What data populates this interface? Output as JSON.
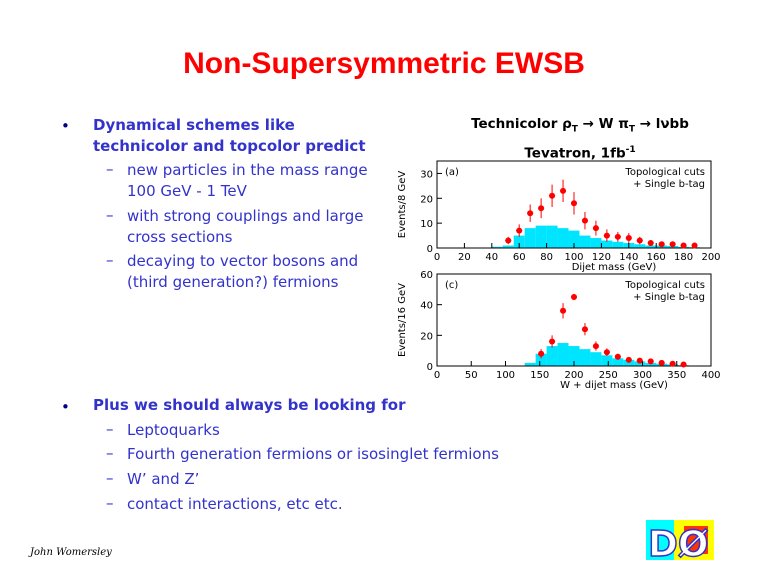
{
  "slide": {
    "title": "Non-Supersymmetric EWSB",
    "footer": "John Womersley"
  },
  "bullets": {
    "first": {
      "text_line1": "Dynamical schemes like",
      "text_line2": "technicolor and topcolor predict",
      "subitems": [
        {
          "line1": "new particles in the mass range",
          "line2": "100 GeV - 1 TeV"
        },
        {
          "line1": "with strong couplings and large",
          "line2": "cross sections"
        },
        {
          "line1": "decaying to vector bosons and",
          "line2": "(third generation?) fermions"
        }
      ]
    },
    "second": {
      "text": "Plus we should always be looking for",
      "subitems": [
        "Leptoquarks",
        "Fourth generation fermions or isosinglet fermions",
        "W’ and Z’",
        "contact interactions, etc etc."
      ]
    }
  },
  "figure": {
    "title_prefix": "Technicolor ",
    "title_rho": "ρ",
    "title_rho_sub": "T",
    "title_arrow1": " → W ",
    "title_pi": "π",
    "title_pi_sub": "T",
    "title_arrow2": " → lνbb",
    "subtitle": "Tevatron, 1fb",
    "subtitle_sup": "-1"
  },
  "logo": {
    "text": "DØ"
  },
  "colors": {
    "title": "#ff0000",
    "text": "#3333cc",
    "bg_hist": "#00e5ff",
    "points": "#ff0000"
  },
  "chart_data": [
    {
      "type": "bar",
      "panel_label": "(a)",
      "annotation_line1": "Topological cuts",
      "annotation_line2": "+ Single b-tag",
      "xlabel": "Dijet mass (GeV)",
      "ylabel": "Events/8 GeV",
      "xlim": [
        0,
        200
      ],
      "ylim": [
        0,
        35
      ],
      "xticks": [
        0,
        20,
        40,
        60,
        80,
        100,
        120,
        140,
        160,
        180,
        200
      ],
      "yticks": [
        0,
        10,
        20,
        30
      ],
      "bin_width": 8,
      "background": [
        {
          "x": 40,
          "y": 0.5
        },
        {
          "x": 48,
          "y": 1
        },
        {
          "x": 56,
          "y": 5
        },
        {
          "x": 64,
          "y": 8
        },
        {
          "x": 72,
          "y": 9
        },
        {
          "x": 80,
          "y": 9
        },
        {
          "x": 88,
          "y": 8
        },
        {
          "x": 96,
          "y": 7
        },
        {
          "x": 104,
          "y": 5
        },
        {
          "x": 112,
          "y": 4
        },
        {
          "x": 120,
          "y": 3
        },
        {
          "x": 128,
          "y": 2.5
        },
        {
          "x": 136,
          "y": 2
        },
        {
          "x": 144,
          "y": 1.5
        },
        {
          "x": 152,
          "y": 1
        },
        {
          "x": 160,
          "y": 1
        },
        {
          "x": 168,
          "y": 0.8
        },
        {
          "x": 176,
          "y": 0.5
        },
        {
          "x": 184,
          "y": 0.3
        }
      ],
      "points": [
        {
          "x": 52,
          "y": 3,
          "err": 1.5
        },
        {
          "x": 60,
          "y": 7,
          "err": 2.5
        },
        {
          "x": 68,
          "y": 14,
          "err": 3.5
        },
        {
          "x": 76,
          "y": 16,
          "err": 4
        },
        {
          "x": 84,
          "y": 21,
          "err": 4.5
        },
        {
          "x": 92,
          "y": 23,
          "err": 4.5
        },
        {
          "x": 100,
          "y": 18,
          "err": 4.5
        },
        {
          "x": 108,
          "y": 11,
          "err": 3.5
        },
        {
          "x": 116,
          "y": 8,
          "err": 3
        },
        {
          "x": 124,
          "y": 5,
          "err": 2.5
        },
        {
          "x": 132,
          "y": 4.5,
          "err": 2
        },
        {
          "x": 140,
          "y": 4,
          "err": 2
        },
        {
          "x": 148,
          "y": 3,
          "err": 1.5
        },
        {
          "x": 156,
          "y": 2,
          "err": 1.2
        },
        {
          "x": 164,
          "y": 1.5,
          "err": 1
        },
        {
          "x": 172,
          "y": 1.5,
          "err": 1
        },
        {
          "x": 180,
          "y": 1,
          "err": 0.8
        },
        {
          "x": 188,
          "y": 1,
          "err": 0.8
        }
      ]
    },
    {
      "type": "bar",
      "panel_label": "(c)",
      "annotation_line1": "Topological cuts",
      "annotation_line2": "+ Single b-tag",
      "xlabel": "W + dijet mass (GeV)",
      "ylabel": "Events/16 GeV",
      "xlim": [
        0,
        400
      ],
      "ylim": [
        0,
        60
      ],
      "xticks": [
        0,
        50,
        100,
        150,
        200,
        250,
        300,
        350,
        400
      ],
      "yticks": [
        0,
        20,
        40,
        60
      ],
      "bin_width": 16,
      "background": [
        {
          "x": 128,
          "y": 2
        },
        {
          "x": 144,
          "y": 8
        },
        {
          "x": 160,
          "y": 13
        },
        {
          "x": 176,
          "y": 15
        },
        {
          "x": 192,
          "y": 13
        },
        {
          "x": 208,
          "y": 11
        },
        {
          "x": 224,
          "y": 9
        },
        {
          "x": 240,
          "y": 7
        },
        {
          "x": 256,
          "y": 5
        },
        {
          "x": 272,
          "y": 4
        },
        {
          "x": 288,
          "y": 3
        },
        {
          "x": 304,
          "y": 2
        },
        {
          "x": 320,
          "y": 1.5
        },
        {
          "x": 336,
          "y": 1
        },
        {
          "x": 352,
          "y": 0.5
        }
      ],
      "points": [
        {
          "x": 152,
          "y": 8,
          "err": 3
        },
        {
          "x": 168,
          "y": 16,
          "err": 4
        },
        {
          "x": 184,
          "y": 36,
          "err": 5
        },
        {
          "x": 200,
          "y": 45,
          "err": 2
        },
        {
          "x": 216,
          "y": 24,
          "err": 4
        },
        {
          "x": 232,
          "y": 13,
          "err": 3
        },
        {
          "x": 248,
          "y": 9,
          "err": 2.5
        },
        {
          "x": 264,
          "y": 6,
          "err": 2
        },
        {
          "x": 280,
          "y": 4,
          "err": 1.5
        },
        {
          "x": 296,
          "y": 3.5,
          "err": 1.5
        },
        {
          "x": 312,
          "y": 3,
          "err": 1.2
        },
        {
          "x": 328,
          "y": 2,
          "err": 1
        },
        {
          "x": 344,
          "y": 1.5,
          "err": 1
        },
        {
          "x": 360,
          "y": 1,
          "err": 0.8
        }
      ]
    }
  ]
}
